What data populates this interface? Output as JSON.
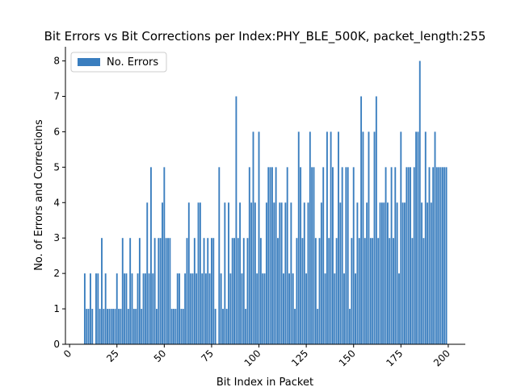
{
  "chart_data": {
    "type": "bar",
    "title": "Bit Errors vs Bit Corrections per Index:PHY_BLE_500K, packet_length:255",
    "x_label": "Bit Index in Packet",
    "y_label": "No. of Errors and Corrections",
    "legend_position": "upper left",
    "x": [
      8,
      9,
      10,
      11,
      12,
      13,
      14,
      15,
      16,
      17,
      18,
      19,
      20,
      21,
      22,
      23,
      24,
      25,
      26,
      27,
      28,
      29,
      30,
      31,
      32,
      33,
      34,
      35,
      36,
      37,
      38,
      39,
      40,
      41,
      42,
      43,
      44,
      45,
      46,
      47,
      48,
      49,
      50,
      51,
      52,
      53,
      54,
      55,
      56,
      57,
      58,
      59,
      60,
      61,
      62,
      63,
      64,
      65,
      66,
      67,
      68,
      69,
      70,
      71,
      72,
      73,
      74,
      75,
      76,
      77,
      78,
      79,
      80,
      81,
      82,
      83,
      84,
      85,
      86,
      87,
      88,
      89,
      90,
      91,
      92,
      93,
      94,
      95,
      96,
      97,
      98,
      99,
      100,
      101,
      102,
      103,
      104,
      105,
      106,
      107,
      108,
      109,
      110,
      111,
      112,
      113,
      114,
      115,
      116,
      117,
      118,
      119,
      120,
      121,
      122,
      123,
      124,
      125,
      126,
      127,
      128,
      129,
      130,
      131,
      132,
      133,
      134,
      135,
      136,
      137,
      138,
      139,
      140,
      141,
      142,
      143,
      144,
      145,
      146,
      147,
      148,
      149,
      150,
      151,
      152,
      153,
      154,
      155,
      156,
      157,
      158,
      159,
      160,
      161,
      162,
      163,
      164,
      165,
      166,
      167,
      168,
      169,
      170,
      171,
      172,
      173,
      174,
      175,
      176,
      177,
      178,
      179,
      180,
      181,
      182,
      183,
      184,
      185,
      186,
      187,
      188,
      189,
      190,
      191,
      192,
      193,
      194,
      195,
      196,
      197,
      198,
      199
    ],
    "series": [
      {
        "name": "No. Errors",
        "color": "#3a7ebf",
        "values": [
          2,
          1,
          1,
          2,
          1,
          0,
          2,
          2,
          1,
          3,
          1,
          2,
          1,
          1,
          1,
          1,
          1,
          2,
          1,
          1,
          3,
          2,
          2,
          1,
          3,
          2,
          1,
          1,
          2,
          3,
          1,
          2,
          2,
          4,
          2,
          5,
          2,
          3,
          1,
          3,
          3,
          4,
          5,
          3,
          3,
          3,
          1,
          1,
          1,
          2,
          2,
          1,
          1,
          2,
          3,
          4,
          2,
          2,
          3,
          2,
          4,
          4,
          2,
          3,
          2,
          3,
          2,
          3,
          3,
          1,
          0,
          5,
          2,
          1,
          4,
          1,
          4,
          2,
          3,
          3,
          7,
          3,
          4,
          2,
          3,
          1,
          3,
          5,
          4,
          6,
          4,
          2,
          6,
          3,
          2,
          2,
          4,
          5,
          5,
          5,
          4,
          5,
          3,
          4,
          4,
          2,
          4,
          5,
          2,
          4,
          2,
          1,
          3,
          6,
          5,
          3,
          4,
          2,
          4,
          6,
          5,
          5,
          3,
          1,
          3,
          4,
          5,
          2,
          6,
          3,
          6,
          5,
          2,
          3,
          6,
          4,
          5,
          2,
          5,
          5,
          1,
          3,
          5,
          2,
          4,
          3,
          7,
          6,
          3,
          4,
          6,
          3,
          3,
          6,
          7,
          3,
          4,
          4,
          4,
          5,
          4,
          3,
          5,
          3,
          5,
          4,
          2,
          6,
          4,
          4,
          5,
          5,
          5,
          3,
          5,
          6,
          6,
          8,
          4,
          3,
          6,
          4,
          5,
          4,
          5,
          6,
          5,
          5,
          5,
          5,
          5,
          5
        ]
      }
    ],
    "xlim": [
      -2.2,
      209
    ],
    "ylim": [
      0,
      8.4
    ],
    "xticks": [
      0,
      25,
      50,
      75,
      100,
      125,
      150,
      175,
      200
    ],
    "yticks": [
      0,
      1,
      2,
      3,
      4,
      5,
      6,
      7,
      8
    ]
  }
}
